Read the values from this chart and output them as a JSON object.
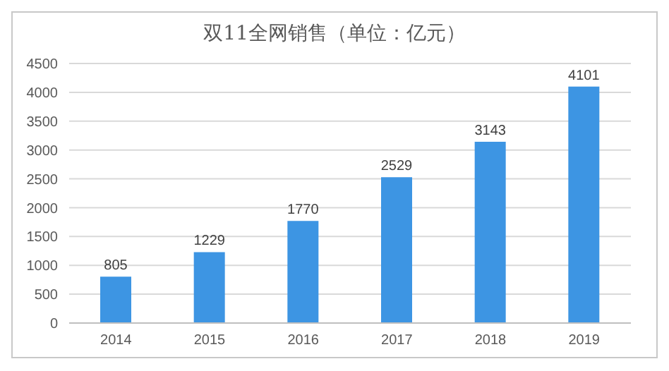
{
  "chart_data": {
    "type": "bar",
    "title": "双11全网销售（单位：亿元）",
    "categories": [
      "2014",
      "2015",
      "2016",
      "2017",
      "2018",
      "2019"
    ],
    "values": [
      805,
      1229,
      1770,
      2529,
      3143,
      4101
    ],
    "color": "#3d95e3",
    "ylim": [
      0,
      4500
    ],
    "yticks": [
      0,
      500,
      1000,
      1500,
      2000,
      2500,
      3000,
      3500,
      4000,
      4500
    ],
    "grid": "y",
    "data_labels": true
  }
}
